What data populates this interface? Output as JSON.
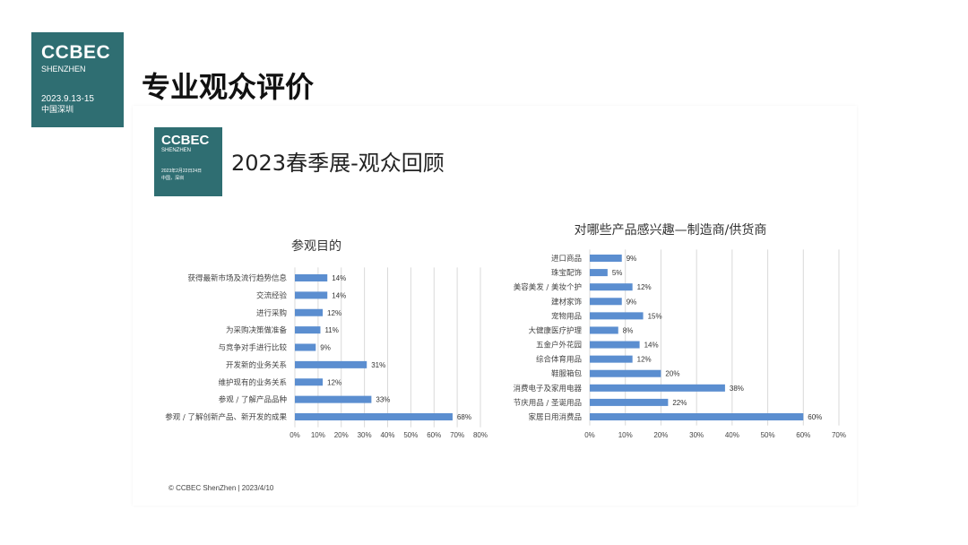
{
  "header": {
    "logo": {
      "title": "CCBEC",
      "subtitle": "SHENZHEN",
      "date": "2023.9.13-15",
      "location": "中国深圳"
    },
    "title": "专业观众评价"
  },
  "slide": {
    "logo": {
      "title": "CCBEC",
      "subtitle": "SHENZHEN",
      "date": "2023年2月22日24日",
      "location": "中国，深圳"
    },
    "title": "2023春季展-观众回顾",
    "footer": "© CCBEC ShenZhen | 2023/4/10"
  },
  "colors": {
    "brand": "#2f6e72",
    "bar": "#5b8ed0"
  },
  "chart_data": [
    {
      "type": "bar",
      "orientation": "horizontal",
      "title": "参观目的",
      "categories": [
        "获得最新市场及流行趋势信息",
        "交流经验",
        "进行采购",
        "为采购决策做准备",
        "与竞争对手进行比较",
        "开发新的业务关系",
        "维护现有的业务关系",
        "参观 / 了解产品品种",
        "参观 / 了解创新产品、新开发的成果"
      ],
      "values": [
        14,
        14,
        12,
        11,
        9,
        31,
        12,
        33,
        68
      ],
      "value_labels": [
        "14%",
        "14%",
        "12%",
        "11%",
        "9%",
        "31%",
        "12%",
        "33%",
        "68%"
      ],
      "xlim": [
        0,
        80
      ],
      "ticks": [
        "0%",
        "10%",
        "20%",
        "30%",
        "40%",
        "50%",
        "60%",
        "70%",
        "80%"
      ],
      "grid": true
    },
    {
      "type": "bar",
      "orientation": "horizontal",
      "title": "对哪些产品感兴趣—制造商/供货商",
      "categories": [
        "进口商品",
        "珠宝配饰",
        "美容美发 / 美妆个护",
        "建材家饰",
        "宠物用品",
        "大健康医疗护理",
        "五金户外花园",
        "综合体育用品",
        "鞋服箱包",
        "消费电子及家用电器",
        "节庆用品 / 圣诞用品",
        "家居日用消费品"
      ],
      "values": [
        9,
        5,
        12,
        9,
        15,
        8,
        14,
        12,
        20,
        38,
        22,
        60
      ],
      "value_labels": [
        "9%",
        "5%",
        "12%",
        "9%",
        "15%",
        "8%",
        "14%",
        "12%",
        "20%",
        "38%",
        "22%",
        "60%"
      ],
      "xlim": [
        0,
        70
      ],
      "ticks": [
        "0%",
        "10%",
        "20%",
        "30%",
        "40%",
        "50%",
        "60%",
        "70%"
      ],
      "grid": true
    }
  ]
}
